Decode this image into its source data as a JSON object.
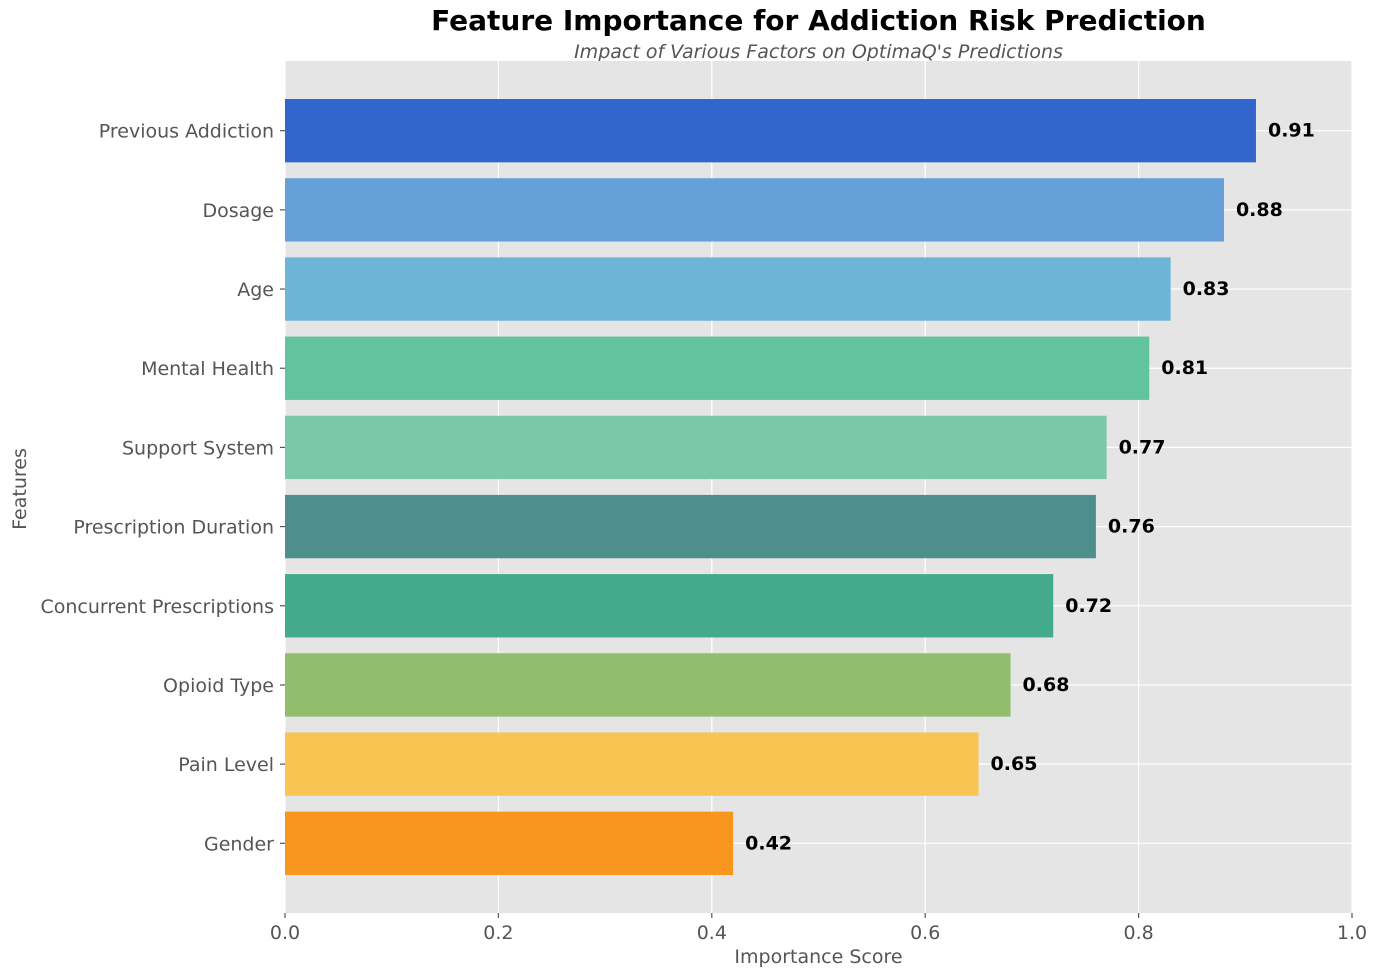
{
  "chart_data": {
    "type": "bar",
    "orientation": "horizontal",
    "title": "Feature Importance for Addiction Risk Prediction",
    "subtitle": "Impact of Various Factors on OptimaQ's Predictions",
    "xlabel": "Importance Score",
    "ylabel": "Features",
    "xlim": [
      0,
      1.0
    ],
    "xticks": [
      "0.0",
      "0.2",
      "0.4",
      "0.6",
      "0.8",
      "1.0"
    ],
    "grid": true,
    "categories": [
      "Previous Addiction",
      "Dosage",
      "Age",
      "Mental Health",
      "Support System",
      "Prescription Duration",
      "Concurrent Prescriptions",
      "Opioid Type",
      "Pain Level",
      "Gender"
    ],
    "values": [
      0.91,
      0.88,
      0.83,
      0.81,
      0.77,
      0.76,
      0.72,
      0.68,
      0.65,
      0.42
    ],
    "value_labels": [
      "0.91",
      "0.88",
      "0.83",
      "0.81",
      "0.77",
      "0.76",
      "0.72",
      "0.68",
      "0.65",
      "0.42"
    ],
    "colors": [
      "#3366cc",
      "#66a0d8",
      "#6cb4d8",
      "#62c3a0",
      "#7cc8a6",
      "#4e8f8c",
      "#43aa8b",
      "#90be6d",
      "#f8c553",
      "#f8961e"
    ]
  }
}
